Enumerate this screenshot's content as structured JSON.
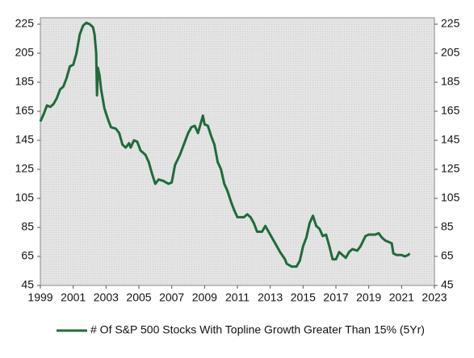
{
  "chart_data": {
    "type": "line",
    "x": [
      1999.0,
      1999.2,
      1999.4,
      1999.6,
      1999.8,
      2000.0,
      2000.2,
      2000.4,
      2000.6,
      2000.8,
      2001.0,
      2001.2,
      2001.4,
      2001.6,
      2001.8,
      2002.0,
      2002.2,
      2002.3,
      2002.4,
      2002.45,
      2002.5,
      2002.6,
      2002.7,
      2002.9,
      2003.1,
      2003.3,
      2003.6,
      2003.8,
      2004.0,
      2004.2,
      2004.4,
      2004.5,
      2004.7,
      2004.9,
      2005.1,
      2005.4,
      2005.6,
      2005.8,
      2006.0,
      2006.2,
      2006.5,
      2006.8,
      2007.0,
      2007.2,
      2007.5,
      2007.8,
      2008.0,
      2008.2,
      2008.4,
      2008.6,
      2008.8,
      2008.9,
      2009.0,
      2009.2,
      2009.4,
      2009.6,
      2009.8,
      2010.0,
      2010.2,
      2010.4,
      2010.6,
      2010.8,
      2011.0,
      2011.4,
      2011.6,
      2011.8,
      2012.0,
      2012.2,
      2012.5,
      2012.7,
      2013.0,
      2013.3,
      2013.6,
      2013.9,
      2014.0,
      2014.3,
      2014.6,
      2014.8,
      2015.0,
      2015.2,
      2015.4,
      2015.6,
      2015.8,
      2016.0,
      2016.2,
      2016.4,
      2016.6,
      2016.8,
      2017.0,
      2017.2,
      2017.4,
      2017.6,
      2017.8,
      2018.0,
      2018.3,
      2018.5,
      2018.8,
      2019.0,
      2019.4,
      2019.6,
      2019.8,
      2020.0,
      2020.2,
      2020.4,
      2020.5,
      2020.7,
      2021.0,
      2021.2,
      2021.4,
      2021.5
    ],
    "series": [
      {
        "name": "# Of S&P 500 Stocks With Topline Growth Greater Than 15% (5Yr)",
        "color": "#1e6b3a",
        "values": [
          158,
          163,
          169,
          168,
          170,
          174,
          180,
          182,
          188,
          196,
          197,
          205,
          218,
          224,
          226,
          225,
          223,
          218,
          205,
          176,
          195,
          190,
          180,
          167,
          160,
          154,
          153,
          150,
          142,
          140,
          143,
          140,
          145,
          144,
          138,
          135,
          130,
          122,
          115,
          118,
          117,
          115,
          116,
          128,
          135,
          144,
          150,
          154,
          155,
          150,
          158,
          162,
          156,
          155,
          148,
          142,
          130,
          125,
          115,
          110,
          103,
          97,
          92,
          92,
          94,
          92,
          88,
          82,
          82,
          86,
          80,
          74,
          68,
          63,
          60,
          58,
          58,
          62,
          72,
          78,
          88,
          93,
          86,
          84,
          79,
          80,
          72,
          63,
          63,
          68,
          66,
          64,
          68,
          70,
          69,
          72,
          79,
          80,
          80,
          81,
          78,
          76,
          75,
          74,
          67,
          66,
          66,
          65,
          66,
          67
        ]
      }
    ],
    "xlim": [
      1999,
      2023
    ],
    "xticks": [
      1999,
      2001,
      2003,
      2005,
      2007,
      2009,
      2011,
      2013,
      2015,
      2017,
      2019,
      2021,
      2023
    ],
    "ylim": [
      45,
      225
    ],
    "yticks": [
      45,
      65,
      85,
      105,
      125,
      145,
      165,
      185,
      205,
      225
    ],
    "y2lim": [
      45,
      225
    ],
    "y2ticks": [
      45,
      65,
      85,
      105,
      125,
      145,
      165,
      185,
      205,
      225
    ],
    "legend": "bottom"
  }
}
